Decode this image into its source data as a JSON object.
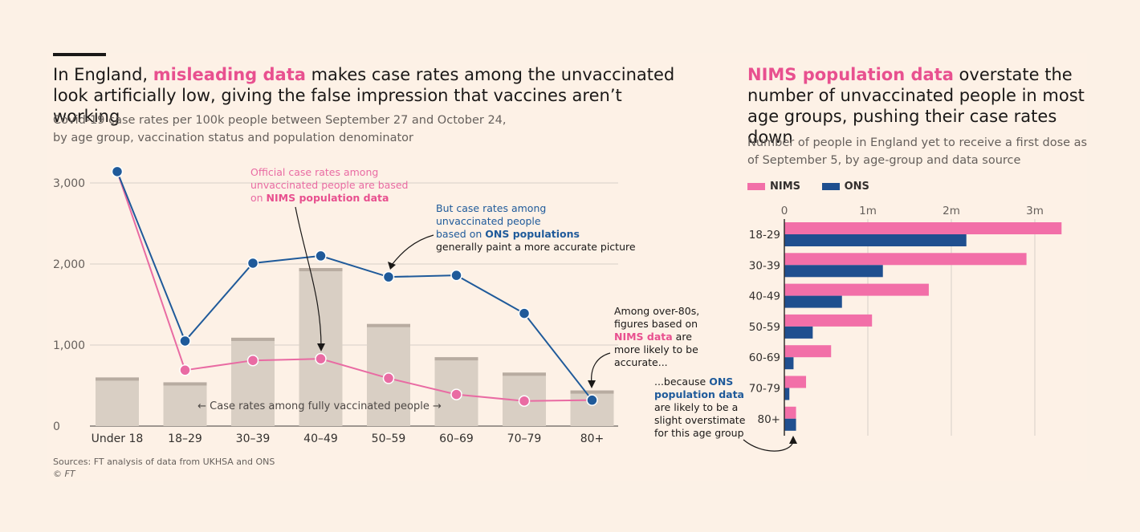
{
  "colors": {
    "background": "#fcf1e6",
    "nims": "#f26fa8",
    "ons": "#1f4f8f",
    "pink_line": "#e96ba3",
    "blue_line": "#1f5a9a",
    "bar_fill": "#d9cfc4",
    "bar_cap": "#b8aca1",
    "grid": "#d8d0c8"
  },
  "left": {
    "title_pre": "In England, ",
    "title_highlight": "misleading data",
    "title_post": " makes case rates among the unvaccinated look artificially low, giving the false impression that vaccines aren’t working",
    "subtitle_line1": "Covid-19 case rates per 100k people between September 27 and October 24,",
    "subtitle_line2": "by age group, vaccination status and population denominator",
    "annotation_nims_1": "Official case rates among",
    "annotation_nims_2": "unvaccinated people are based",
    "annotation_nims_3_pre": "on ",
    "annotation_nims_3_bold": "NIMS population data",
    "annotation_ons_1": "But case rates among",
    "annotation_ons_2": "unvaccinated people",
    "annotation_ons_3_pre": "based on ",
    "annotation_ons_3_bold": "ONS populations",
    "annotation_ons_4": "generally paint a more accurate picture",
    "annotation_80_1": "Among over-80s,",
    "annotation_80_2": "figures based on",
    "annotation_80_3_bold": "NIMS data",
    "annotation_80_3_post": " are",
    "annotation_80_4": "more likely to be",
    "annotation_80_5": "accurate...",
    "annotation_ons80_1_pre": "...because ",
    "annotation_ons80_1_bold": "ONS",
    "annotation_ons80_2_bold": "population data",
    "annotation_ons80_3": "are likely to be a",
    "annotation_ons80_4": "slight overstimate",
    "annotation_ons80_5": "for this age group",
    "vaccinated_label": "Case rates among fully vaccinated people"
  },
  "right": {
    "title_highlight": "NIMS population data",
    "title_post": " overstate the number of unvaccinated people in most age groups, pushing their case rates down",
    "subtitle": "Number of people in England yet to receive a first dose as of September 5, by age-group and data source",
    "legend_nims": "NIMS",
    "legend_ons": "ONS"
  },
  "footer": {
    "sources": "Sources: FT analysis of data from UKHSA and ONS",
    "copyright": "© FT"
  },
  "chart_data": [
    {
      "type": "line",
      "title": "Covid-19 case rates per 100k people between September 27 and October 24",
      "categories": [
        "Under 18",
        "18–29",
        "30–39",
        "40–49",
        "50–59",
        "60–69",
        "70–79",
        "80+"
      ],
      "ylim": [
        0,
        3000
      ],
      "yticks": [
        0,
        1000,
        2000,
        3000
      ],
      "ytick_labels": [
        "0",
        "1,000",
        "2,000",
        "3,000"
      ],
      "series": [
        {
          "name": "Fully vaccinated",
          "kind": "bar",
          "values": [
            600,
            540,
            1090,
            1950,
            1260,
            850,
            660,
            440
          ]
        },
        {
          "name": "Unvaccinated (NIMS population data)",
          "kind": "line",
          "values": [
            3140,
            690,
            810,
            830,
            590,
            390,
            310,
            null
          ]
        },
        {
          "name": "Unvaccinated (ONS populations)",
          "kind": "line",
          "values": [
            3140,
            1050,
            2010,
            2100,
            1840,
            1860,
            1390,
            320
          ]
        }
      ]
    },
    {
      "type": "bar",
      "orientation": "horizontal",
      "title": "Number of people in England yet to receive a first dose as of September 5",
      "categories": [
        "18-29",
        "30-39",
        "40-49",
        "50-59",
        "60-69",
        "70-79",
        "80+"
      ],
      "xlim": [
        0,
        3400000
      ],
      "xticks": [
        0,
        1000000,
        2000000,
        3000000
      ],
      "xtick_labels": [
        "0",
        "1m",
        "2m",
        "3m"
      ],
      "series": [
        {
          "name": "NIMS",
          "values": [
            3320000,
            2900000,
            1730000,
            1050000,
            560000,
            260000,
            140000
          ]
        },
        {
          "name": "ONS",
          "values": [
            2180000,
            1180000,
            690000,
            340000,
            110000,
            60000,
            140000
          ]
        }
      ]
    }
  ]
}
